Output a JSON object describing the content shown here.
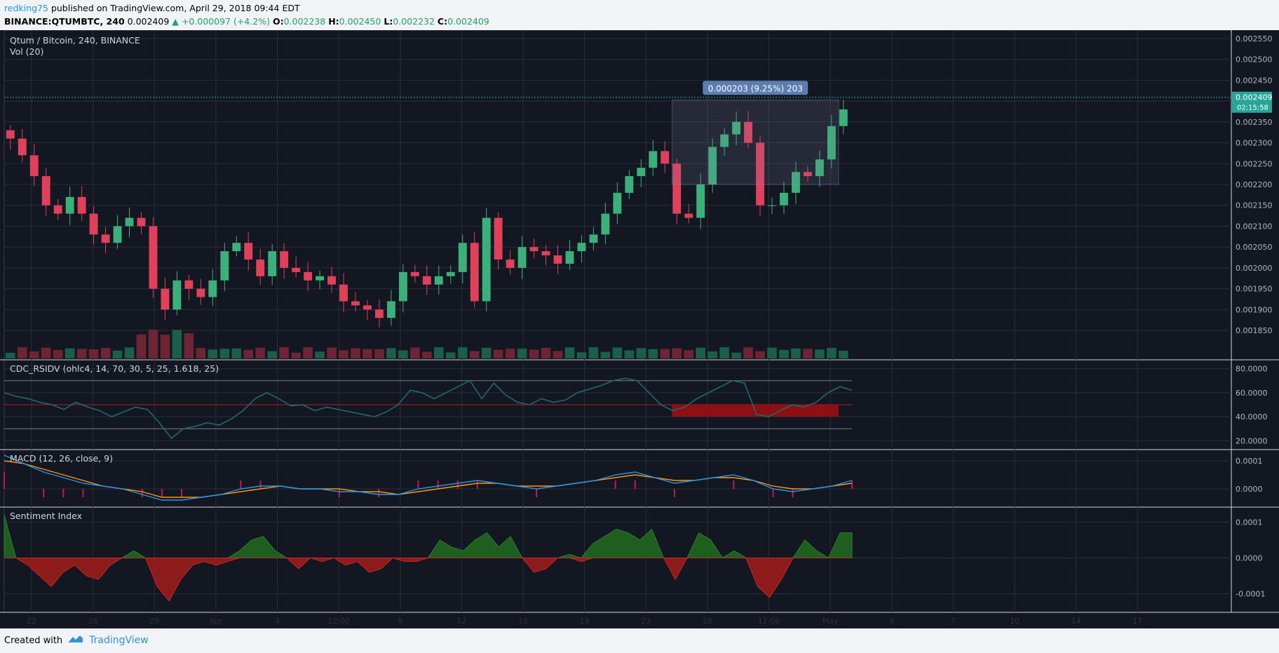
{
  "header": {
    "author": "redking75",
    "published": "published on TradingView.com, April 29, 2018 09:44 EDT",
    "symbol": "BINANCE:QTUMBTC, 240",
    "last": "0.002409",
    "change": "▲ +0.000097 (+4.2%)",
    "o_label": "O:",
    "o": "0.002238",
    "h_label": "H:",
    "h": "0.002450",
    "l_label": "L:",
    "l": "0.002232",
    "c_label": "C:",
    "c": "0.002409"
  },
  "footer": {
    "created": "Created with",
    "brand": "TradingView"
  },
  "colors": {
    "background": "#131722",
    "grid": "#2a2e39",
    "up": "#26a69a",
    "down": "#ef5350",
    "up_candle": "#3cb07a",
    "down_candle": "#e0405a",
    "rsi_line": "#1d6b6b",
    "macd_line": "#2196f3",
    "signal_line": "#ff9800",
    "sentiment_pos": "#1e5e1e",
    "sentiment_neg": "#8e1b1b",
    "measure_box": "#5b7db1"
  },
  "chart_data": [
    {
      "type": "candlestick",
      "pane": "price",
      "title": "Qtum / Bitcoin, 240, BINANCE",
      "volume_label": "Vol (20)",
      "x_ticks": [
        "22",
        "26",
        "29",
        "Apr",
        "4",
        "12:00",
        "9",
        "12",
        "16",
        "19",
        "23",
        "26",
        "12:00",
        "May",
        "4",
        "7",
        "10",
        "14",
        "17"
      ],
      "y_ticks": [
        "0.002550",
        "0.002500",
        "0.002450",
        "0.002400",
        "0.002350",
        "0.002300",
        "0.002250",
        "0.002200",
        "0.002150",
        "0.002100",
        "0.002050",
        "0.002000",
        "0.001950",
        "0.001900",
        "0.001850"
      ],
      "ylim": [
        0.00183,
        0.00257
      ],
      "last_price": "0.002409",
      "countdown": "02:15:58",
      "closes": [
        0.00231,
        0.00227,
        0.00222,
        0.00215,
        0.00213,
        0.00217,
        0.00213,
        0.00208,
        0.00206,
        0.0021,
        0.00212,
        0.0021,
        0.00195,
        0.0019,
        0.00197,
        0.00195,
        0.00193,
        0.00197,
        0.00204,
        0.00206,
        0.00202,
        0.00198,
        0.00204,
        0.002,
        0.00199,
        0.00197,
        0.00198,
        0.00196,
        0.00192,
        0.00191,
        0.0019,
        0.00188,
        0.00192,
        0.00199,
        0.00198,
        0.00196,
        0.00198,
        0.00199,
        0.00206,
        0.00192,
        0.00212,
        0.00202,
        0.002,
        0.00205,
        0.00204,
        0.00203,
        0.00201,
        0.00204,
        0.00206,
        0.00208,
        0.00213,
        0.00218,
        0.00222,
        0.00224,
        0.00228,
        0.00225,
        0.00213,
        0.00212,
        0.0022,
        0.00229,
        0.00232,
        0.00235,
        0.0023,
        0.00215,
        0.00215,
        0.00218,
        0.00223,
        0.00222,
        0.00226,
        0.00234,
        0.00238
      ],
      "measure": {
        "label": "0.000203 (9.25%) 203",
        "from": 0.0022,
        "to": 0.002403
      }
    },
    {
      "type": "line",
      "pane": "oscillator",
      "title": "CDC_RSIDV (ohlc4, 14, 70, 30, 5, 25, 1.618, 25)",
      "y_ticks": [
        "80.0000",
        "60.0000",
        "40.0000",
        "20.0000"
      ],
      "ylim": [
        15,
        85
      ],
      "bands": [
        70,
        50,
        30
      ],
      "values": [
        60,
        57,
        55,
        52,
        50,
        46,
        52,
        48,
        45,
        40,
        44,
        48,
        46,
        35,
        22,
        30,
        32,
        35,
        33,
        38,
        45,
        55,
        60,
        55,
        49,
        50,
        45,
        48,
        46,
        44,
        42,
        40,
        44,
        50,
        62,
        60,
        55,
        60,
        65,
        70,
        55,
        68,
        58,
        52,
        50,
        55,
        52,
        54,
        60,
        63,
        66,
        70,
        72,
        70,
        60,
        50,
        45,
        48,
        55,
        60,
        65,
        70,
        68,
        42,
        40,
        45,
        50,
        48,
        52,
        60,
        65,
        62
      ]
    },
    {
      "type": "line",
      "pane": "macd",
      "title": "MACD (12, 26, close, 9)",
      "y_ticks": [
        "0.0001",
        "0.0000"
      ],
      "ylim": [
        -5.5e-05,
        0.00013
      ],
      "series": [
        {
          "name": "MACD",
          "values": [
            0.00012,
            9e-05,
            6e-05,
            4e-05,
            2e-05,
            1e-05,
            0.0,
            -2e-05,
            -4e-05,
            -4e-05,
            -3e-05,
            -2e-05,
            0.0,
            1e-05,
            1e-05,
            0.0,
            0.0,
            -1e-05,
            -1e-05,
            -2e-05,
            -2e-05,
            0.0,
            1e-05,
            2e-05,
            3e-05,
            2e-05,
            1e-05,
            0.0,
            1e-05,
            2e-05,
            3e-05,
            5e-05,
            6e-05,
            4e-05,
            2e-05,
            3e-05,
            4e-05,
            5e-05,
            3e-05,
            0.0,
            -1e-05,
            0.0,
            1e-05,
            3e-05
          ]
        },
        {
          "name": "Signal",
          "values": [
            0.0001,
            9e-05,
            7e-05,
            5e-05,
            3e-05,
            1e-05,
            0.0,
            -1e-05,
            -3e-05,
            -3e-05,
            -3e-05,
            -2e-05,
            -1e-05,
            0.0,
            1e-05,
            0.0,
            0.0,
            0.0,
            -1e-05,
            -1e-05,
            -2e-05,
            -1e-05,
            0.0,
            1e-05,
            2e-05,
            2e-05,
            1e-05,
            1e-05,
            1e-05,
            2e-05,
            3e-05,
            4e-05,
            5e-05,
            4e-05,
            3e-05,
            3e-05,
            4e-05,
            4e-05,
            3e-05,
            1e-05,
            0.0,
            0.0,
            1e-05,
            2e-05
          ]
        }
      ]
    },
    {
      "type": "area",
      "pane": "sentiment",
      "title": "Sentiment Index",
      "y_ticks": [
        "0.0001",
        "0.0000",
        "-0.0001"
      ],
      "ylim": [
        -0.00014,
        0.00013
      ],
      "values": [
        0.00012,
        0.0,
        -2e-05,
        -5e-05,
        -8e-05,
        -4e-05,
        -2e-05,
        -5e-05,
        -6e-05,
        -2e-05,
        0.0,
        2e-05,
        0.0,
        -8e-05,
        -0.00012,
        -6e-05,
        -2e-05,
        -1e-05,
        -2e-05,
        -1e-05,
        2e-05,
        5e-05,
        6e-05,
        2e-05,
        0.0,
        -3e-05,
        0.0,
        -1e-05,
        0.0,
        -2e-05,
        -1e-05,
        -4e-05,
        -3e-05,
        0.0,
        -1e-05,
        -1e-05,
        0.0,
        5e-05,
        3e-05,
        2e-05,
        5e-05,
        7e-05,
        3e-05,
        6e-05,
        0.0,
        -4e-05,
        -3e-05,
        0.0,
        1e-05,
        -1e-05,
        4e-05,
        6e-05,
        8e-05,
        7e-05,
        5e-05,
        8e-05,
        0.0,
        -6e-05,
        0.0,
        7e-05,
        5e-05,
        0.0,
        2e-05,
        0.0,
        -8e-05,
        -0.00011,
        -6e-05,
        0.0,
        5e-05,
        2e-05,
        0.0,
        7e-05,
        7e-05
      ]
    }
  ]
}
